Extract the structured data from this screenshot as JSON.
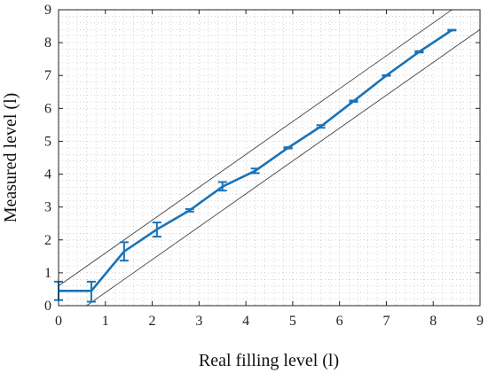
{
  "chart_data": {
    "type": "line",
    "title": "",
    "xlabel": "Real filling level (l)",
    "ylabel": "Measured level (l)",
    "xlim": [
      0,
      9
    ],
    "ylim": [
      0,
      9
    ],
    "xticks": [
      0,
      1,
      2,
      3,
      4,
      5,
      6,
      7,
      8,
      9
    ],
    "yticks": [
      0,
      1,
      2,
      3,
      4,
      5,
      6,
      7,
      8,
      9
    ],
    "grid": "minor dotted",
    "series": [
      {
        "color": "#1a73b8",
        "x": [
          0,
          0.7,
          1.4,
          2.1,
          2.8,
          3.5,
          4.2,
          4.9,
          5.6,
          6.3,
          7.0,
          7.7,
          8.4
        ],
        "y": [
          0.45,
          0.45,
          1.65,
          2.32,
          2.9,
          3.62,
          4.1,
          4.8,
          5.45,
          6.22,
          7.0,
          7.72,
          8.38
        ],
        "err_low": [
          0.17,
          0.12,
          1.37,
          2.1,
          2.86,
          3.5,
          4.03,
          4.78,
          5.41,
          6.2,
          6.99,
          7.7,
          8.37
        ],
        "err_high": [
          0.73,
          0.73,
          1.93,
          2.53,
          2.94,
          3.76,
          4.17,
          4.82,
          5.49,
          6.24,
          7.01,
          7.74,
          8.39
        ]
      }
    ],
    "bounds": [
      {
        "color": "#444444",
        "x": [
          0,
          8.7
        ],
        "y": [
          0.6,
          9.3
        ]
      },
      {
        "color": "#444444",
        "x": [
          0.6,
          9.6
        ],
        "y": [
          0,
          9.0
        ]
      }
    ]
  }
}
